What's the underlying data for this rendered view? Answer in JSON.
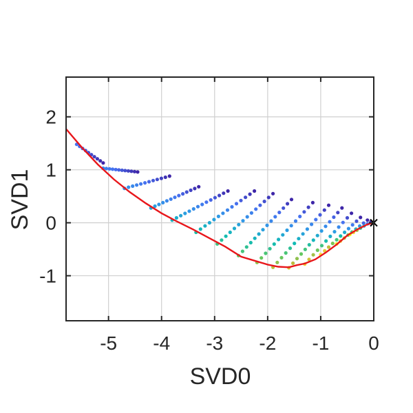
{
  "chart_data": {
    "type": "scatter",
    "title": "",
    "xlabel": "SVD0",
    "ylabel": "SVD1",
    "xlim": [
      -5.8,
      0
    ],
    "ylim": [
      -1.85,
      2.75
    ],
    "xticks": [
      -5,
      -4,
      -3,
      -2,
      -1,
      0
    ],
    "yticks": [
      -1,
      0,
      1,
      2
    ],
    "grid": true,
    "curve": {
      "color": "#e8161b",
      "points": [
        [
          -5.8,
          1.77
        ],
        [
          -5.5,
          1.42
        ],
        [
          -5.2,
          1.1
        ],
        [
          -4.9,
          0.82
        ],
        [
          -4.6,
          0.58
        ],
        [
          -4.3,
          0.37
        ],
        [
          -4.0,
          0.18
        ],
        [
          -3.7,
          0.02
        ],
        [
          -3.4,
          -0.13
        ],
        [
          -3.1,
          -0.29
        ],
        [
          -2.8,
          -0.45
        ],
        [
          -2.5,
          -0.64
        ],
        [
          -2.2,
          -0.73
        ],
        [
          -2.0,
          -0.79
        ],
        [
          -1.8,
          -0.83
        ],
        [
          -1.6,
          -0.84
        ],
        [
          -1.45,
          -0.8
        ],
        [
          -1.3,
          -0.77
        ],
        [
          -1.1,
          -0.69
        ],
        [
          -0.9,
          -0.56
        ],
        [
          -0.7,
          -0.41
        ],
        [
          -0.5,
          -0.24
        ],
        [
          -0.3,
          -0.12
        ],
        [
          -0.12,
          -0.03
        ],
        [
          0.0,
          0.0
        ]
      ]
    },
    "marker": {
      "x": 0,
      "y": 0,
      "symbol": "x"
    },
    "rays": [
      {
        "x0": -5.6,
        "y0": 1.48,
        "x1": -5.1,
        "y1": 1.13,
        "n": 10
      },
      {
        "x0": -5.1,
        "y0": 1.03,
        "x1": -4.45,
        "y1": 0.96,
        "n": 12
      },
      {
        "x0": -4.7,
        "y0": 0.65,
        "x1": -3.85,
        "y1": 0.88,
        "n": 12
      },
      {
        "x0": -4.2,
        "y0": 0.28,
        "x1": -3.3,
        "y1": 0.68,
        "n": 13
      },
      {
        "x0": -3.8,
        "y0": 0.05,
        "x1": -2.75,
        "y1": 0.6,
        "n": 14
      },
      {
        "x0": -3.35,
        "y0": -0.18,
        "x1": -2.25,
        "y1": 0.6,
        "n": 14
      },
      {
        "x0": -2.95,
        "y0": -0.4,
        "x1": -1.9,
        "y1": 0.55,
        "n": 14
      },
      {
        "x0": -2.55,
        "y0": -0.62,
        "x1": -1.55,
        "y1": 0.44,
        "n": 14
      },
      {
        "x0": -2.2,
        "y0": -0.75,
        "x1": -1.15,
        "y1": 0.38,
        "n": 14
      },
      {
        "x0": -1.9,
        "y0": -0.84,
        "x1": -0.85,
        "y1": 0.33,
        "n": 14
      },
      {
        "x0": -1.6,
        "y0": -0.85,
        "x1": -0.6,
        "y1": 0.28,
        "n": 14
      },
      {
        "x0": -1.3,
        "y0": -0.78,
        "x1": -0.42,
        "y1": 0.18,
        "n": 12
      },
      {
        "x0": -1.0,
        "y0": -0.6,
        "x1": -0.25,
        "y1": 0.1,
        "n": 11
      },
      {
        "x0": -0.7,
        "y0": -0.4,
        "x1": -0.12,
        "y1": 0.05,
        "n": 9
      },
      {
        "x0": -0.45,
        "y0": -0.22,
        "x1": -0.05,
        "y1": 0.02,
        "n": 7
      }
    ],
    "colormap": [
      "#3e26a8",
      "#4771f0",
      "#2e9be6",
      "#11bbb4",
      "#5bc863",
      "#c7bc3a",
      "#f9d835",
      "#f9fb15"
    ],
    "axes_color": "#262626",
    "grid_color": "#cfcfcf"
  }
}
